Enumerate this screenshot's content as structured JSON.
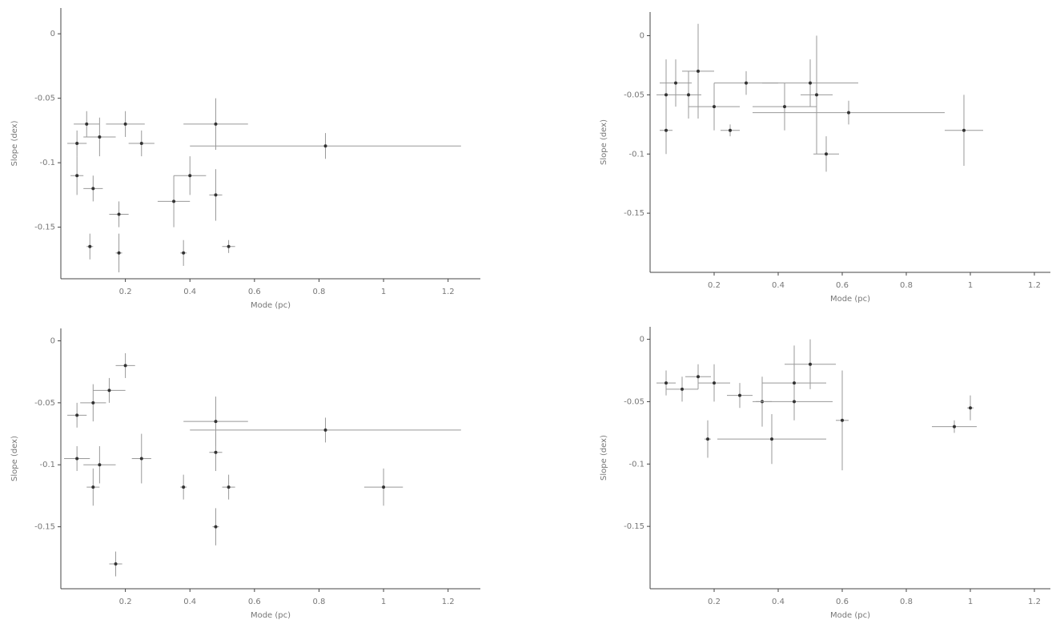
{
  "chart_data": [
    {
      "type": "errorbar-scatter",
      "xlabel": "Mode (pc)",
      "ylabel": "Slope (dex)",
      "color": "#333333",
      "xlim": [
        0,
        1.3
      ],
      "ylim": [
        -0.19,
        0.02
      ],
      "xticks": [
        0.2,
        0.4,
        0.6,
        0.8,
        1,
        1.2
      ],
      "yticks": [
        0,
        -0.05,
        -0.1,
        -0.15
      ],
      "x": [
        0.05,
        0.08,
        0.12,
        0.1,
        0.05,
        0.2,
        0.25,
        0.18,
        0.35,
        0.48,
        0.48,
        0.82,
        0.09,
        0.18,
        0.38,
        0.52,
        0.4
      ],
      "values": [
        -0.085,
        -0.07,
        -0.08,
        -0.12,
        -0.11,
        -0.07,
        -0.085,
        -0.14,
        -0.13,
        -0.07,
        -0.125,
        -0.087,
        -0.165,
        -0.17,
        -0.17,
        -0.165,
        -0.11
      ],
      "x_errors": [
        0.03,
        0.04,
        0.05,
        0.03,
        0.02,
        0.06,
        0.04,
        0.03,
        0.05,
        0.1,
        0.02,
        0.42,
        0.01,
        0.01,
        0.01,
        0.02,
        0.05
      ],
      "y_errors": [
        0.01,
        0.01,
        0.015,
        0.01,
        0.015,
        0.01,
        0.01,
        0.01,
        0.02,
        0.02,
        0.02,
        0.01,
        0.01,
        0.015,
        0.01,
        0.005,
        0.015
      ]
    },
    {
      "type": "errorbar-scatter",
      "xlabel": "Mode (pc)",
      "ylabel": "Slope (dex)",
      "color": "#333333",
      "xlim": [
        0,
        1.25
      ],
      "ylim": [
        -0.2,
        0.02
      ],
      "xticks": [
        0.2,
        0.4,
        0.6,
        0.8,
        1,
        1.2
      ],
      "yticks": [
        0,
        -0.05,
        -0.1,
        -0.15
      ],
      "x": [
        0.05,
        0.08,
        0.12,
        0.15,
        0.2,
        0.3,
        0.42,
        0.52,
        0.62,
        0.98,
        0.55,
        0.05,
        0.25,
        0.5
      ],
      "values": [
        -0.05,
        -0.04,
        -0.05,
        -0.03,
        -0.06,
        -0.04,
        -0.06,
        -0.05,
        -0.065,
        -0.08,
        -0.1,
        -0.08,
        -0.08,
        -0.04
      ],
      "x_errors": [
        0.03,
        0.05,
        0.04,
        0.05,
        0.08,
        0.1,
        0.1,
        0.05,
        0.3,
        0.06,
        0.04,
        0.02,
        0.03,
        0.15
      ],
      "y_errors": [
        0.03,
        0.02,
        0.02,
        0.04,
        0.02,
        0.01,
        0.02,
        0.05,
        0.01,
        0.03,
        0.015,
        0.02,
        0.005,
        0.02
      ]
    },
    {
      "type": "errorbar-scatter",
      "xlabel": "Mode (pc)",
      "ylabel": "Slope (dex)",
      "color": "#333333",
      "xlim": [
        0,
        1.3
      ],
      "ylim": [
        -0.2,
        0.01
      ],
      "xticks": [
        0.2,
        0.4,
        0.6,
        0.8,
        1,
        1.2
      ],
      "yticks": [
        0,
        -0.05,
        -0.1,
        -0.15
      ],
      "x": [
        0.05,
        0.1,
        0.15,
        0.2,
        0.05,
        0.12,
        0.25,
        0.48,
        0.48,
        0.82,
        0.52,
        0.38,
        1.0,
        0.48,
        0.17,
        0.1
      ],
      "values": [
        -0.06,
        -0.05,
        -0.04,
        -0.02,
        -0.095,
        -0.1,
        -0.095,
        -0.065,
        -0.09,
        -0.072,
        -0.118,
        -0.118,
        -0.118,
        -0.15,
        -0.18,
        -0.118
      ],
      "x_errors": [
        0.03,
        0.04,
        0.05,
        0.03,
        0.04,
        0.05,
        0.03,
        0.1,
        0.02,
        0.42,
        0.02,
        0.01,
        0.06,
        0.01,
        0.02,
        0.02
      ],
      "y_errors": [
        0.01,
        0.015,
        0.01,
        0.01,
        0.01,
        0.015,
        0.02,
        0.02,
        0.015,
        0.01,
        0.01,
        0.01,
        0.015,
        0.015,
        0.01,
        0.015
      ]
    },
    {
      "type": "errorbar-scatter",
      "xlabel": "Mode (pc)",
      "ylabel": "Slope (dex)",
      "color": "#333333",
      "xlim": [
        0,
        1.25
      ],
      "ylim": [
        -0.2,
        0.01
      ],
      "xticks": [
        0.2,
        0.4,
        0.6,
        0.8,
        1,
        1.2
      ],
      "yticks": [
        0,
        -0.05,
        -0.1,
        -0.15
      ],
      "x": [
        0.05,
        0.1,
        0.15,
        0.2,
        0.28,
        0.35,
        0.45,
        0.5,
        0.6,
        0.45,
        0.38,
        1.0,
        0.95,
        0.18
      ],
      "values": [
        -0.035,
        -0.04,
        -0.03,
        -0.035,
        -0.045,
        -0.05,
        -0.035,
        -0.02,
        -0.065,
        -0.05,
        -0.08,
        -0.055,
        -0.07,
        -0.08
      ],
      "x_errors": [
        0.03,
        0.05,
        0.04,
        0.05,
        0.04,
        0.03,
        0.1,
        0.08,
        0.02,
        0.12,
        0.17,
        0.01,
        0.07,
        0.01
      ],
      "y_errors": [
        0.01,
        0.01,
        0.01,
        0.015,
        0.01,
        0.02,
        0.03,
        0.02,
        0.04,
        0.01,
        0.02,
        0.01,
        0.005,
        0.015
      ]
    }
  ]
}
